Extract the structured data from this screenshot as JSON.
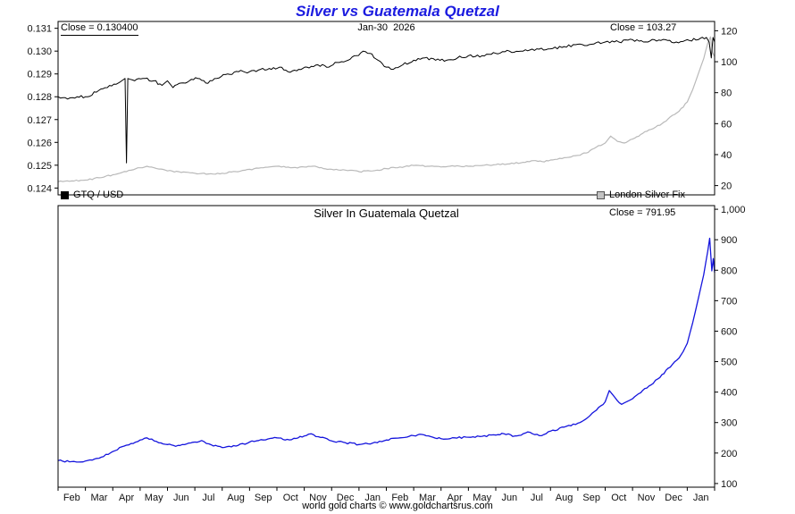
{
  "title": "Silver vs Guatemala Quetzal",
  "footer": "world gold charts © www.goldchartsrus.com",
  "colors": {
    "title_blue": "#1b1be0",
    "gtq_usd_line": "#000000",
    "silver_fix_line": "#b9b9b9",
    "silver_in_gtq_line": "#1515dd"
  },
  "top_panel": {
    "close_label": "Close = 0.130400",
    "date_label": "Jan-30  2026",
    "silver_close_label": "Close = 103.27"
  },
  "legend": {
    "gtq_label": "GTQ / USD",
    "silver_label": "London Silver Fix"
  },
  "bottom_panel": {
    "title": "Silver In Guatemala Quetzal",
    "close_label": "Close = 791.95"
  },
  "chart_data": {
    "type": "line",
    "title": "Silver vs Guatemala Quetzal",
    "grid": false,
    "x_unit": "months, Feb 2024 through Jan 2026",
    "x_categories": [
      "Feb",
      "Mar",
      "Apr",
      "May",
      "Jun",
      "Jul",
      "Aug",
      "Sep",
      "Oct",
      "Nov",
      "Dec",
      "Jan",
      "Feb",
      "Mar",
      "Apr",
      "May",
      "Jun",
      "Jul",
      "Aug",
      "Sep",
      "Oct",
      "Nov",
      "Dec",
      "Jan"
    ],
    "panels": [
      {
        "id": "top",
        "left_axis": {
          "min": 0.1237,
          "max": 0.1313,
          "ticks": [
            "0.131",
            "0.130",
            "0.129",
            "0.128",
            "0.127",
            "0.126",
            "0.125",
            "0.124"
          ]
        },
        "right_axis": {
          "min": 14,
          "max": 126,
          "ticks": [
            "120",
            "100",
            "80",
            "60",
            "40",
            "20"
          ]
        },
        "annotations": [
          "Close = 0.130400",
          "Jan-30  2026",
          "Close = 103.27"
        ],
        "series": [
          {
            "name": "London Silver Fix",
            "axis": "right",
            "color": "#b9b9b9",
            "width": 1.2,
            "jitter": 0.45,
            "close": 103.27,
            "points": [
              [
                0,
                22.5
              ],
              [
                0.5,
                23
              ],
              [
                1,
                23.5
              ],
              [
                1.5,
                25
              ],
              [
                2,
                27
              ],
              [
                2.5,
                29
              ],
              [
                3,
                31.5
              ],
              [
                3.25,
                32.5
              ],
              [
                3.6,
                31
              ],
              [
                4,
                29.5
              ],
              [
                4.5,
                28.5
              ],
              [
                5,
                28
              ],
              [
                5.5,
                27.5
              ],
              [
                6,
                28
              ],
              [
                6.5,
                29
              ],
              [
                7,
                30.5
              ],
              [
                7.5,
                31.5
              ],
              [
                8,
                32.5
              ],
              [
                8.5,
                31.5
              ],
              [
                9,
                32
              ],
              [
                9.3,
                32.5
              ],
              [
                9.7,
                31
              ],
              [
                10,
                30.5
              ],
              [
                10.5,
                30
              ],
              [
                11,
                29
              ],
              [
                11.5,
                29.5
              ],
              [
                12,
                31
              ],
              [
                12.5,
                32
              ],
              [
                13,
                33
              ],
              [
                13.5,
                32.5
              ],
              [
                14,
                32
              ],
              [
                14.5,
                32.5
              ],
              [
                15,
                32.5
              ],
              [
                15.5,
                33
              ],
              [
                16,
                33.5
              ],
              [
                16.5,
                34
              ],
              [
                17,
                35
              ],
              [
                17.3,
                36
              ],
              [
                17.7,
                35.5
              ],
              [
                18,
                36.5
              ],
              [
                18.5,
                38
              ],
              [
                19,
                39.5
              ],
              [
                19.3,
                41
              ],
              [
                19.6,
                44
              ],
              [
                20,
                47.5
              ],
              [
                20.2,
                52
              ],
              [
                20.45,
                48.5
              ],
              [
                20.7,
                47.5
              ],
              [
                21,
                50
              ],
              [
                21.3,
                53
              ],
              [
                21.6,
                56
              ],
              [
                22,
                59
              ],
              [
                22.3,
                63
              ],
              [
                22.7,
                68
              ],
              [
                23,
                74
              ],
              [
                23.2,
                82
              ],
              [
                23.4,
                92
              ],
              [
                23.6,
                102
              ],
              [
                23.75,
                112
              ],
              [
                23.85,
                116
              ],
              [
                23.92,
                106
              ],
              [
                24,
                103.27
              ]
            ]
          },
          {
            "name": "GTQ / USD",
            "axis": "left",
            "color": "#000000",
            "width": 1,
            "jitter": 6e-05,
            "close": 0.1304,
            "points": [
              [
                0,
                0.128
              ],
              [
                0.35,
                0.1279
              ],
              [
                0.7,
                0.128
              ],
              [
                1,
                0.128
              ],
              [
                1.4,
                0.1282
              ],
              [
                1.8,
                0.1284
              ],
              [
                2.2,
                0.1286
              ],
              [
                2.45,
                0.1288
              ],
              [
                2.5,
                0.1251
              ],
              [
                2.55,
                0.1288
              ],
              [
                2.8,
                0.1287
              ],
              [
                3.1,
                0.1288
              ],
              [
                3.5,
                0.1287
              ],
              [
                3.8,
                0.1285
              ],
              [
                4,
                0.1287
              ],
              [
                4.2,
                0.1284
              ],
              [
                4.5,
                0.1286
              ],
              [
                4.8,
                0.1287
              ],
              [
                5.1,
                0.1288
              ],
              [
                5.4,
                0.1286
              ],
              [
                5.8,
                0.1288
              ],
              [
                6.2,
                0.129
              ],
              [
                6.6,
                0.1291
              ],
              [
                7,
                0.1291
              ],
              [
                7.4,
                0.1292
              ],
              [
                7.8,
                0.1292
              ],
              [
                8.1,
                0.1293
              ],
              [
                8.4,
                0.1291
              ],
              [
                8.8,
                0.1292
              ],
              [
                9.1,
                0.1293
              ],
              [
                9.5,
                0.1294
              ],
              [
                9.9,
                0.1293
              ],
              [
                10.2,
                0.1295
              ],
              [
                10.6,
                0.1296
              ],
              [
                10.9,
                0.1298
              ],
              [
                11.15,
                0.13
              ],
              [
                11.4,
                0.1299
              ],
              [
                11.7,
                0.1296
              ],
              [
                12,
                0.1293
              ],
              [
                12.25,
                0.1292
              ],
              [
                12.6,
                0.1294
              ],
              [
                13,
                0.1296
              ],
              [
                13.4,
                0.1297
              ],
              [
                13.8,
                0.1296
              ],
              [
                14.2,
                0.1296
              ],
              [
                14.6,
                0.1297
              ],
              [
                15,
                0.1298
              ],
              [
                15.5,
                0.1298
              ],
              [
                16,
                0.1299
              ],
              [
                16.5,
                0.13
              ],
              [
                17,
                0.13
              ],
              [
                17.5,
                0.1301
              ],
              [
                18,
                0.1301
              ],
              [
                18.5,
                0.1302
              ],
              [
                19,
                0.1303
              ],
              [
                19.5,
                0.1303
              ],
              [
                20,
                0.1304
              ],
              [
                20.5,
                0.1304
              ],
              [
                21,
                0.1305
              ],
              [
                21.4,
                0.1304
              ],
              [
                21.8,
                0.1305
              ],
              [
                22.2,
                0.1305
              ],
              [
                22.6,
                0.1304
              ],
              [
                23,
                0.1305
              ],
              [
                23.4,
                0.1305
              ],
              [
                23.7,
                0.1306
              ],
              [
                23.8,
                0.1304
              ],
              [
                23.88,
                0.1297
              ],
              [
                23.94,
                0.1306
              ],
              [
                24,
                0.1304
              ]
            ]
          }
        ]
      },
      {
        "id": "bottom",
        "title": "Silver In Guatemala Quetzal",
        "right_axis": {
          "min": 88,
          "max": 1012,
          "ticks": [
            "1,000",
            "900",
            "800",
            "700",
            "600",
            "500",
            "400",
            "300",
            "200",
            "100"
          ]
        },
        "annotations": [
          "Close = 791.95"
        ],
        "series": [
          {
            "name": "Silver In Guatemala Quetzal",
            "axis": "right",
            "color": "#1515dd",
            "width": 1.3,
            "jitter": 3,
            "close": 791.95,
            "points": [
              [
                0,
                175
              ],
              [
                0.5,
                172
              ],
              [
                1,
                174
              ],
              [
                1.5,
                183
              ],
              [
                2,
                205
              ],
              [
                2.5,
                226
              ],
              [
                3,
                243
              ],
              [
                3.25,
                250
              ],
              [
                3.6,
                238
              ],
              [
                4,
                228
              ],
              [
                4.3,
                222
              ],
              [
                4.7,
                230
              ],
              [
                5,
                236
              ],
              [
                5.25,
                241
              ],
              [
                5.6,
                227
              ],
              [
                6,
                218
              ],
              [
                6.5,
                223
              ],
              [
                7,
                236
              ],
              [
                7.5,
                243
              ],
              [
                8,
                250
              ],
              [
                8.3,
                243
              ],
              [
                8.7,
                248
              ],
              [
                9,
                256
              ],
              [
                9.25,
                263
              ],
              [
                9.6,
                251
              ],
              [
                10,
                240
              ],
              [
                10.5,
                234
              ],
              [
                11,
                228
              ],
              [
                11.5,
                233
              ],
              [
                12,
                243
              ],
              [
                12.5,
                250
              ],
              [
                13,
                257
              ],
              [
                13.3,
                261
              ],
              [
                13.7,
                252
              ],
              [
                14,
                247
              ],
              [
                14.5,
                250
              ],
              [
                15,
                252
              ],
              [
                15.5,
                255
              ],
              [
                16,
                259
              ],
              [
                16.3,
                263
              ],
              [
                16.7,
                256
              ],
              [
                17,
                263
              ],
              [
                17.25,
                268
              ],
              [
                17.6,
                257
              ],
              [
                18,
                272
              ],
              [
                18.5,
                285
              ],
              [
                19,
                298
              ],
              [
                19.3,
                312
              ],
              [
                19.6,
                336
              ],
              [
                20,
                368
              ],
              [
                20.15,
                405
              ],
              [
                20.35,
                383
              ],
              [
                20.6,
                360
              ],
              [
                20.8,
                369
              ],
              [
                21,
                378
              ],
              [
                21.3,
                398
              ],
              [
                21.6,
                420
              ],
              [
                22,
                448
              ],
              [
                22.3,
                478
              ],
              [
                22.7,
                512
              ],
              [
                23,
                560
              ],
              [
                23.2,
                628
              ],
              [
                23.4,
                705
              ],
              [
                23.6,
                785
              ],
              [
                23.75,
                862
              ],
              [
                23.82,
                905
              ],
              [
                23.9,
                798
              ],
              [
                23.95,
                838
              ],
              [
                24,
                791.95
              ]
            ]
          }
        ]
      }
    ]
  }
}
